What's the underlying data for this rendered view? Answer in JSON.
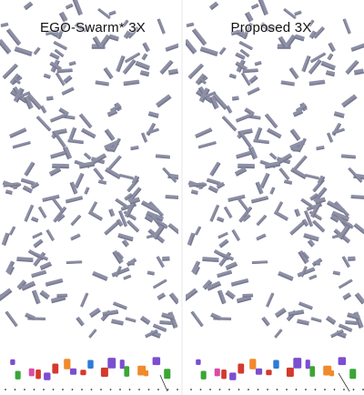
{
  "panels": [
    {
      "title": "EGO-Swarm* 3X"
    },
    {
      "title": "Proposed 3X"
    }
  ],
  "colors": {
    "obstacle": "#8e90a6",
    "obstacle_dark": "#6e7088",
    "ground_dot": "#333333",
    "drones": [
      "#2f7bd6",
      "#d33a2c",
      "#e7b21e",
      "#3aa635",
      "#d94ca8",
      "#f08a2c",
      "#7b4fd0"
    ]
  }
}
